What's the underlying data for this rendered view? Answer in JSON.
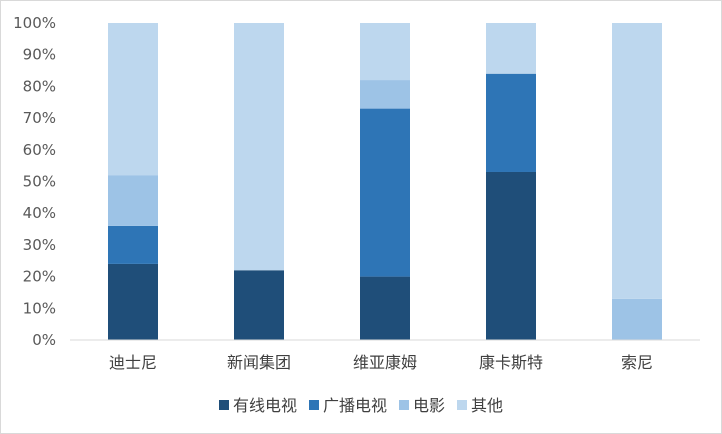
{
  "chart_data": {
    "type": "bar",
    "stacked": true,
    "categories": [
      "迪士尼",
      "新闻集团",
      "维亚康姆",
      "康卡斯特",
      "索尼"
    ],
    "series": [
      {
        "name": "有线电视",
        "values": [
          24,
          22,
          20,
          53,
          0
        ]
      },
      {
        "name": "广播电视",
        "values": [
          12,
          0,
          53,
          31,
          0
        ]
      },
      {
        "name": "电影",
        "values": [
          16,
          0,
          9,
          0,
          13
        ]
      },
      {
        "name": "其他",
        "values": [
          48,
          78,
          18,
          16,
          87
        ]
      }
    ],
    "colors": [
      "#1f4e79",
      "#2e75b6",
      "#9dc3e6",
      "#bdd7ee"
    ],
    "ylim": [
      0,
      100
    ],
    "yticks": [
      "0%",
      "10%",
      "20%",
      "30%",
      "40%",
      "50%",
      "60%",
      "70%",
      "80%",
      "90%",
      "100%"
    ],
    "grid": false,
    "legend_position": "bottom",
    "title": "",
    "xlabel": "",
    "ylabel": ""
  }
}
